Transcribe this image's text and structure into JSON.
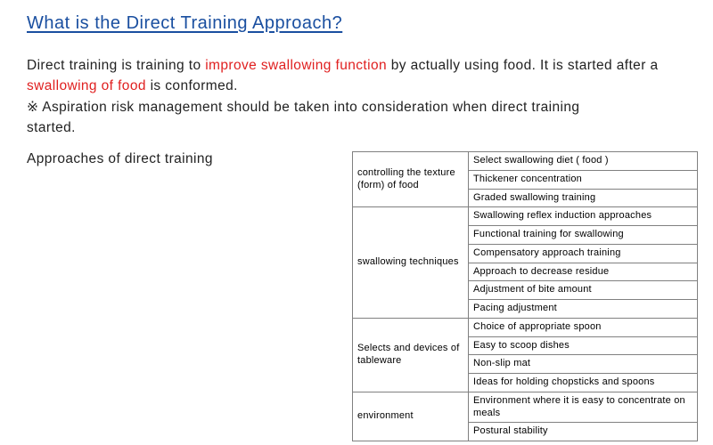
{
  "title_color": "#1a4fa0",
  "text_color": "#222222",
  "highlight_color": "#e02020",
  "border_color": "#808080",
  "title": "What is the Direct Training Approach?",
  "para": {
    "d1": "Direct training is training to",
    "d2": "improve swallowing function",
    "d3": "by actually using food. It is",
    "d4": "started after a",
    "d5": "swallowing of food",
    "d6": "is conformed.",
    "d7": "※ Aspiration risk management should be taken into consideration when direct training",
    "d8": "started."
  },
  "approaches_label": "Approaches of direct training",
  "table": {
    "cats": [
      {
        "label": "controlling the texture (form) of food",
        "items": [
          "Select swallowing diet ( food )",
          "Thickener concentration",
          "Graded swallowing training"
        ]
      },
      {
        "label": "swallowing techniques",
        "items": [
          "Swallowing reflex induction approaches",
          "Functional training for swallowing",
          "Compensatory approach training",
          "Approach to decrease residue",
          "Adjustment of bite amount",
          "Pacing adjustment"
        ]
      },
      {
        "label": "Selects and devices of tableware",
        "items": [
          "Choice of appropriate spoon",
          "Easy to scoop dishes",
          "Non-slip mat",
          "Ideas for holding chopsticks and spoons"
        ]
      },
      {
        "label": "environment",
        "items": [
          "Environment where it is easy to concentrate on meals",
          "Postural stability"
        ]
      }
    ]
  }
}
